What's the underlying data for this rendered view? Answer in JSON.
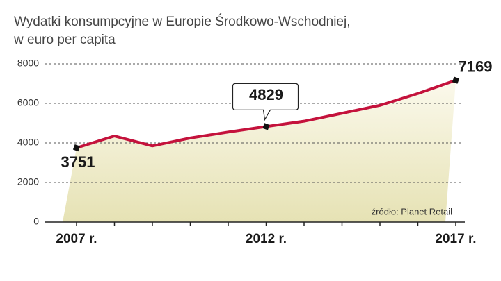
{
  "chart_data": {
    "type": "line",
    "title": "Wydatki konsumpcyjne w Europie Środkowo-Wschodniej,",
    "subtitle": "w euro per capita",
    "source": "źródło: Planet Retail",
    "categories": [
      "2007 r.",
      null,
      null,
      null,
      null,
      "2012 r.",
      null,
      null,
      null,
      null,
      "2017 r."
    ],
    "values": [
      3751,
      4350,
      3850,
      4250,
      4550,
      4829,
      5100,
      5500,
      5900,
      6500,
      7169
    ],
    "color": "#c4123c",
    "ylim": [
      0,
      8000
    ],
    "yticks": [
      0,
      2000,
      4000,
      6000,
      8000
    ],
    "grid": true
  }
}
